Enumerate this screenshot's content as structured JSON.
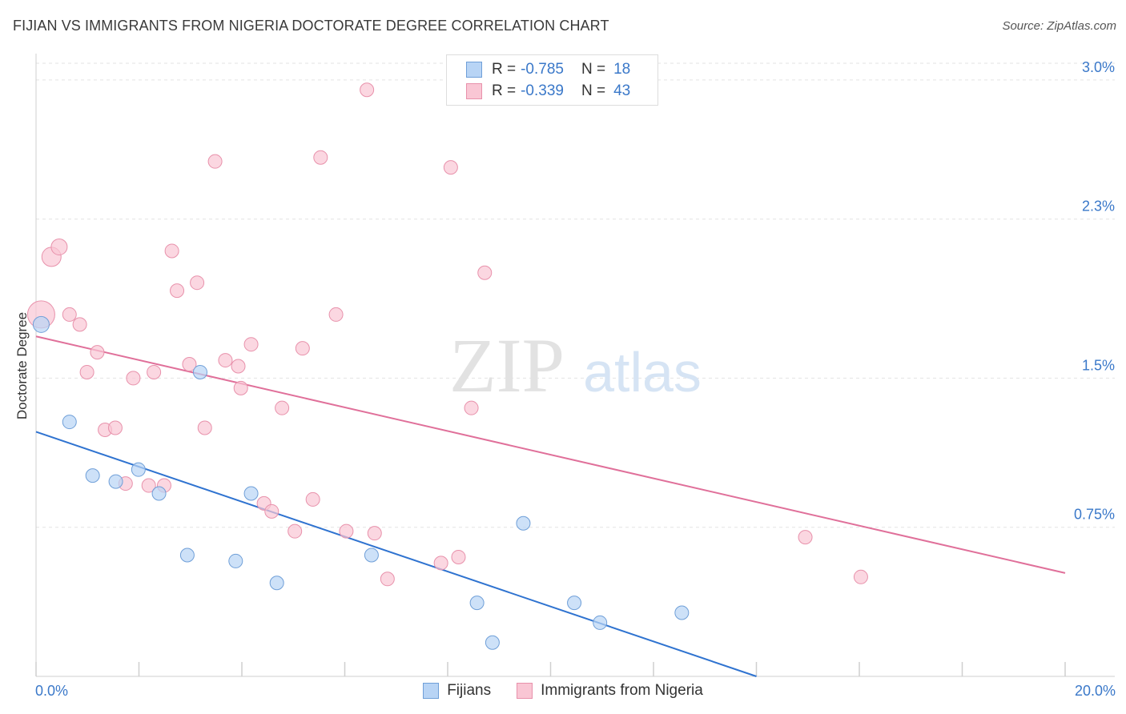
{
  "title": "FIJIAN VS IMMIGRANTS FROM NIGERIA DOCTORATE DEGREE CORRELATION CHART",
  "source": "Source: ZipAtlas.com",
  "watermark": {
    "zip": "ZIP",
    "atlas": "atlas"
  },
  "legend": {
    "r_label": "R =",
    "n_label": "N =",
    "series": [
      {
        "name": "Fijians",
        "r": "-0.785",
        "n": "18",
        "fill": "#b8d4f5",
        "stroke": "#6f9fd8",
        "line": "#2f73d0"
      },
      {
        "name": "Immigrants from Nigeria",
        "r": "-0.339",
        "n": "43",
        "fill": "#f9c6d4",
        "stroke": "#e891ab",
        "line": "#e0709a"
      }
    ]
  },
  "chart_data": {
    "type": "scatter",
    "title": "FIJIAN VS IMMIGRANTS FROM NIGERIA DOCTORATE DEGREE CORRELATION CHART",
    "xlabel": "",
    "ylabel": "Doctorate Degree",
    "xlim": [
      0,
      20
    ],
    "ylim": [
      0,
      3.1
    ],
    "x_tick_labels": [
      "0.0%",
      "20.0%"
    ],
    "y_ticks": [
      0.75,
      1.5,
      2.3,
      3.0
    ],
    "y_tick_labels": [
      "0.75%",
      "1.5%",
      "2.3%",
      "3.0%"
    ],
    "grid": true,
    "series": [
      {
        "name": "Fijians",
        "points": [
          [
            0.1,
            1.77
          ],
          [
            0.65,
            1.28
          ],
          [
            1.1,
            1.01
          ],
          [
            1.55,
            0.98
          ],
          [
            1.99,
            1.04
          ],
          [
            2.39,
            0.92
          ],
          [
            2.94,
            0.61
          ],
          [
            3.19,
            1.53
          ],
          [
            3.88,
            0.58
          ],
          [
            4.18,
            0.92
          ],
          [
            4.68,
            0.47
          ],
          [
            6.52,
            0.61
          ],
          [
            8.57,
            0.37
          ],
          [
            8.87,
            0.17
          ],
          [
            9.47,
            0.77
          ],
          [
            10.46,
            0.37
          ],
          [
            10.96,
            0.27
          ],
          [
            12.55,
            0.32
          ]
        ],
        "trend": {
          "x": [
            0,
            14.0
          ],
          "y": [
            1.23,
            0.0
          ]
        }
      },
      {
        "name": "Immigrants from Nigeria",
        "points": [
          [
            0.1,
            1.82
          ],
          [
            0.3,
            2.11
          ],
          [
            0.45,
            2.16
          ],
          [
            0.65,
            1.82
          ],
          [
            0.85,
            1.77
          ],
          [
            0.99,
            1.53
          ],
          [
            1.19,
            1.63
          ],
          [
            1.34,
            1.24
          ],
          [
            1.54,
            1.25
          ],
          [
            1.74,
            0.97
          ],
          [
            1.89,
            1.5
          ],
          [
            2.19,
            0.96
          ],
          [
            2.29,
            1.53
          ],
          [
            2.49,
            0.96
          ],
          [
            2.64,
            2.14
          ],
          [
            2.74,
            1.94
          ],
          [
            2.98,
            1.57
          ],
          [
            3.13,
            1.98
          ],
          [
            3.28,
            1.25
          ],
          [
            3.48,
            2.59
          ],
          [
            3.68,
            1.59
          ],
          [
            3.93,
            1.56
          ],
          [
            3.98,
            1.45
          ],
          [
            4.18,
            1.67
          ],
          [
            4.43,
            0.87
          ],
          [
            4.58,
            0.83
          ],
          [
            4.78,
            1.35
          ],
          [
            5.03,
            0.73
          ],
          [
            5.18,
            1.65
          ],
          [
            5.38,
            0.89
          ],
          [
            5.53,
            2.61
          ],
          [
            5.83,
            1.82
          ],
          [
            6.03,
            0.73
          ],
          [
            6.43,
            2.95
          ],
          [
            6.58,
            0.72
          ],
          [
            6.83,
            0.49
          ],
          [
            7.87,
            0.57
          ],
          [
            8.06,
            2.56
          ],
          [
            8.21,
            0.6
          ],
          [
            8.46,
            1.35
          ],
          [
            8.72,
            2.03
          ],
          [
            14.95,
            0.7
          ],
          [
            16.03,
            0.5
          ]
        ],
        "trend": {
          "x": [
            0,
            20
          ],
          "y": [
            1.71,
            0.52
          ]
        }
      }
    ]
  }
}
